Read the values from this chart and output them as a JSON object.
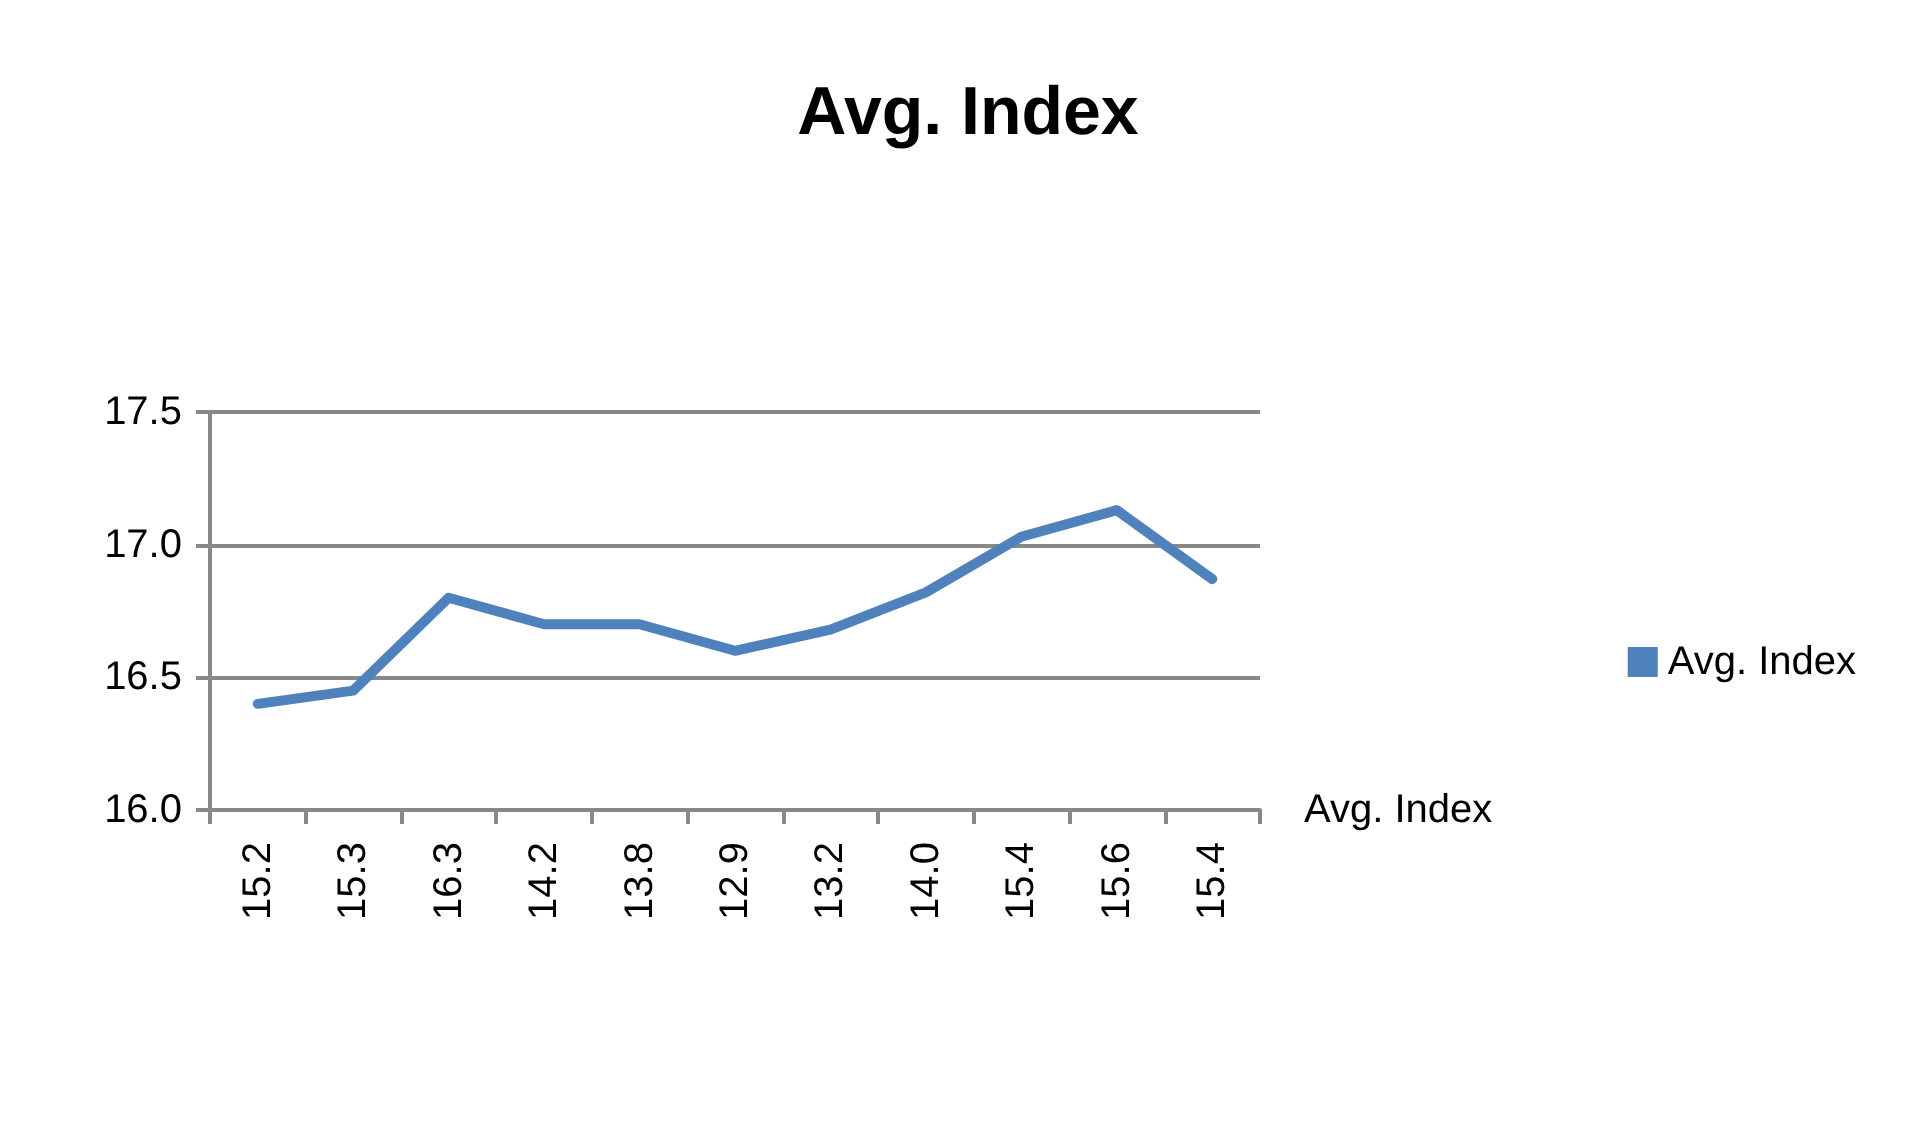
{
  "chart_data": {
    "type": "line",
    "title": "Avg. Index",
    "categories": [
      "15.2",
      "15.3",
      "16.3",
      "14.2",
      "13.8",
      "12.9",
      "13.2",
      "14.0",
      "15.4",
      "15.6",
      "15.4"
    ],
    "series": [
      {
        "name": "Avg. Index",
        "color": "#4f81bd",
        "values": [
          16.4,
          16.45,
          16.8,
          16.7,
          16.7,
          16.6,
          16.68,
          16.82,
          17.03,
          17.13,
          16.87
        ]
      }
    ],
    "ylim": [
      16,
      17.5
    ],
    "yticks": [
      {
        "value": 16,
        "label": "16.0"
      },
      16.5,
      {
        "value": 17,
        "label": "17.0"
      },
      17.5
    ],
    "grid": "y",
    "legend": "right",
    "marker": "none"
  }
}
